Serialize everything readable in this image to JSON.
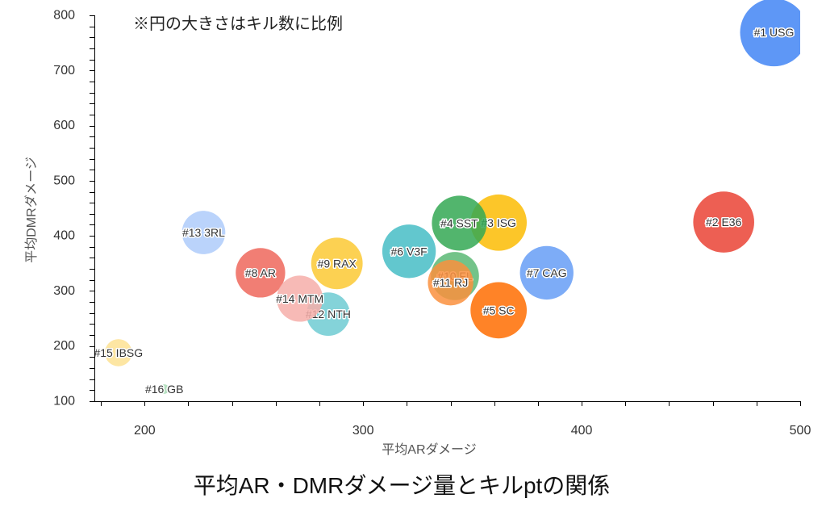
{
  "chart_data": {
    "type": "scatter",
    "subtype": "bubble",
    "title": "平均AR・DMRダメージ量とキルptの関係",
    "xlabel": "平均ARダメージ",
    "ylabel": "平均DMRダメージ",
    "note": "※円の大きさはキル数に比例",
    "xlim": [
      177,
      500
    ],
    "ylim": [
      100,
      800
    ],
    "xticks": [
      200,
      300,
      400,
      500
    ],
    "yticks": [
      100,
      200,
      300,
      400,
      500,
      600,
      700,
      800
    ],
    "grid": false,
    "legend": "none",
    "points": [
      {
        "label": "#1 USG",
        "x": 488,
        "y": 769,
        "size": 1.0,
        "color": "#4285f4"
      },
      {
        "label": "#2 E36",
        "x": 465,
        "y": 425,
        "size": 0.9,
        "color": "#ea4335"
      },
      {
        "label": "#3 ISG",
        "x": 362,
        "y": 424,
        "size": 0.83,
        "color": "#fbbc04"
      },
      {
        "label": "#4 SST",
        "x": 344,
        "y": 423,
        "size": 0.81,
        "color": "#34a853"
      },
      {
        "label": "#5 SC",
        "x": 362,
        "y": 265,
        "size": 0.83,
        "color": "#ff6d01"
      },
      {
        "label": "#6 V3F",
        "x": 321,
        "y": 372,
        "size": 0.79,
        "color": "#46bdc6"
      },
      {
        "label": "#7 CAG",
        "x": 384,
        "y": 333,
        "size": 0.79,
        "color": "#669df6"
      },
      {
        "label": "#8 AR",
        "x": 253,
        "y": 333,
        "size": 0.73,
        "color": "#ee675c"
      },
      {
        "label": "#9 RAX",
        "x": 288,
        "y": 350,
        "size": 0.76,
        "color": "#fcc934"
      },
      {
        "label": "#10 FL",
        "x": 342,
        "y": 327,
        "size": 0.71,
        "color": "#5bb974"
      },
      {
        "label": "#11 RJ",
        "x": 340,
        "y": 315,
        "size": 0.67,
        "color": "#fa903e"
      },
      {
        "label": "#12 NTH",
        "x": 284,
        "y": 258,
        "size": 0.64,
        "color": "#6fcbd2"
      },
      {
        "label": "#13 3RL",
        "x": 227,
        "y": 406,
        "size": 0.64,
        "color": "#aecbfa"
      },
      {
        "label": "#14 MTM",
        "x": 271,
        "y": 286,
        "size": 0.68,
        "color": "#f6aea9"
      },
      {
        "label": "#15 IBSG",
        "x": 188,
        "y": 188,
        "size": 0.4,
        "color": "#fde293"
      },
      {
        "label": "#16 GB",
        "x": 209,
        "y": 122,
        "size": 0.14,
        "color": "#a8dab5"
      }
    ]
  }
}
